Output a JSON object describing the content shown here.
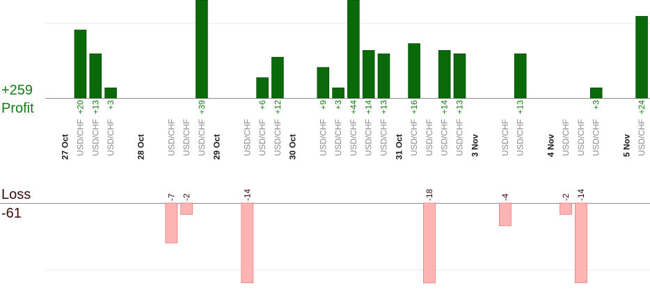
{
  "summary": {
    "profit_total": "+259",
    "profit_label": "Profit",
    "loss_label": "Loss",
    "loss_total": "-61"
  },
  "colors": {
    "profit_bar": "#0a6a0a",
    "profit_bar_edge": "#063f06",
    "profit_text": "#157a15",
    "loss_bar": "#ffb4b4",
    "loss_bar_edge": "#e57c7c",
    "loss_text": "#3a0a0a",
    "pair_text": "#8a8a8a",
    "date_text": "#1a1a1a"
  },
  "chart_data": {
    "type": "bar",
    "dates": [
      "27 Oct",
      "28 Oct",
      "29 Oct",
      "30 Oct",
      "31 Oct",
      "3 Nov",
      "4 Nov",
      "5 Nov"
    ],
    "trades": [
      {
        "pair": "USD/CHF",
        "value": 20,
        "label": "+20"
      },
      {
        "pair": "USD/CHF",
        "value": 13,
        "label": "+13"
      },
      {
        "pair": "USD/CHF",
        "value": 3,
        "label": "+3"
      },
      {
        "pair": "USD/CHF",
        "value": -7,
        "label": "-7"
      },
      {
        "pair": "USD/CHF",
        "value": -2,
        "label": "-2"
      },
      {
        "pair": "USD/CHF",
        "value": 39,
        "label": "+39"
      },
      {
        "pair": "USD/CHF",
        "value": -14,
        "label": "-14"
      },
      {
        "pair": "USD/CHF",
        "value": 6,
        "label": "+6"
      },
      {
        "pair": "USD/CHF",
        "value": 12,
        "label": "+12"
      },
      {
        "pair": "USD/CHF",
        "value": 9,
        "label": "+9"
      },
      {
        "pair": "USD/CHF",
        "value": 3,
        "label": "+3"
      },
      {
        "pair": "USD/CHF",
        "value": 44,
        "label": "+44"
      },
      {
        "pair": "USD/CHF",
        "value": 14,
        "label": "+14"
      },
      {
        "pair": "USD/CHF",
        "value": 13,
        "label": "+13"
      },
      {
        "pair": "USD/CHF",
        "value": 16,
        "label": "+16"
      },
      {
        "pair": "USD/CHF",
        "value": -18,
        "label": "-18"
      },
      {
        "pair": "USD/CHF",
        "value": 14,
        "label": "+14"
      },
      {
        "pair": "USD/CHF",
        "value": 13,
        "label": "+13"
      },
      {
        "pair": "USD/CHF",
        "value": -4,
        "label": "-4"
      },
      {
        "pair": "USD/CHF",
        "value": 13,
        "label": "+13"
      },
      {
        "pair": "USD/CHF",
        "value": -2,
        "label": "-2"
      },
      {
        "pair": "USD/CHF",
        "value": -14,
        "label": "-14"
      },
      {
        "pair": "USD/CHF",
        "value": 3,
        "label": "+3"
      },
      {
        "pair": "USD/CHF",
        "value": 24,
        "label": "+24"
      }
    ],
    "grid": true
  }
}
